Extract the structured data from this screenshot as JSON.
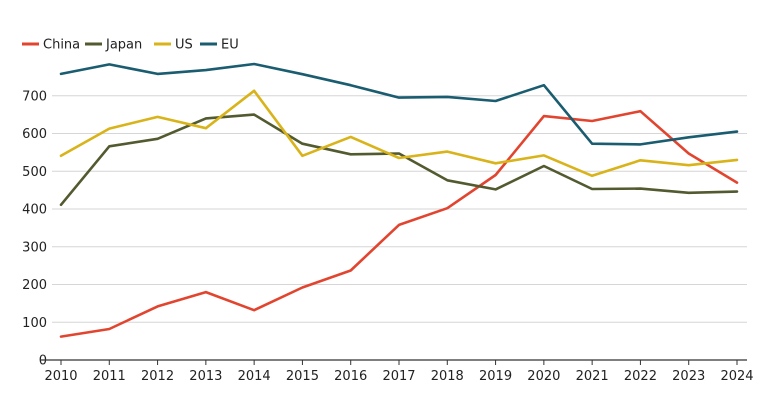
{
  "chart_data": {
    "type": "line",
    "title": "",
    "xlabel": "",
    "ylabel": "",
    "x": [
      "2010",
      "2011",
      "2012",
      "2013",
      "2014",
      "2015",
      "2016",
      "2017",
      "2018",
      "2019",
      "2020",
      "2021",
      "2022",
      "2023",
      "2024"
    ],
    "ylim": [
      0,
      800
    ],
    "yticks": [
      "0",
      "100",
      "200",
      "300",
      "400",
      "500",
      "600",
      "700"
    ],
    "grid": true,
    "legend_position": "top-left",
    "series": [
      {
        "name": "China",
        "color": "#e2452f",
        "values": [
          62,
          82,
          142,
          180,
          132,
          192,
          237,
          358,
          402,
          490,
          646,
          633,
          659,
          547,
          470
        ]
      },
      {
        "name": "Japan",
        "color": "#525a2f",
        "values": [
          411,
          566,
          586,
          640,
          650,
          573,
          545,
          547,
          476,
          452,
          514,
          453,
          454,
          443,
          446
        ]
      },
      {
        "name": "US",
        "color": "#d9b31a",
        "values": [
          541,
          613,
          644,
          614,
          713,
          541,
          591,
          535,
          552,
          521,
          542,
          488,
          529,
          516,
          530
        ]
      },
      {
        "name": "EU",
        "color": "#1a5c70",
        "values": [
          758,
          783,
          758,
          768,
          784,
          757,
          728,
          695,
          697,
          686,
          728,
          573,
          571,
          590,
          605
        ]
      }
    ]
  }
}
